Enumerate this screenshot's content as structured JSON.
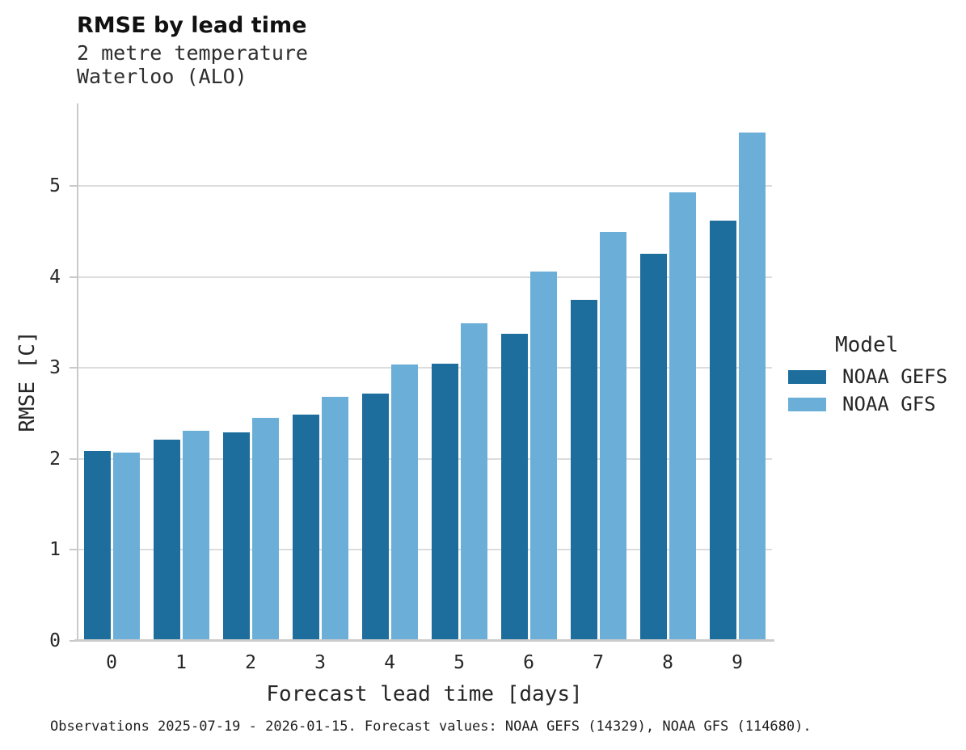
{
  "header": {
    "title": "RMSE by lead time",
    "subtitle_line1": "2 metre temperature",
    "subtitle_line2": "Waterloo (ALO)"
  },
  "chart_data": {
    "type": "bar",
    "title": "RMSE by lead time",
    "subtitle": [
      "2 metre temperature",
      "Waterloo (ALO)"
    ],
    "categories": [
      "0",
      "1",
      "2",
      "3",
      "4",
      "5",
      "6",
      "7",
      "8",
      "9"
    ],
    "series": [
      {
        "name": "NOAA GEFS",
        "color": "#1d6e9d",
        "values": [
          2.09,
          2.21,
          2.29,
          2.49,
          2.72,
          3.05,
          3.38,
          3.75,
          4.26,
          4.62
        ]
      },
      {
        "name": "NOAA GFS",
        "color": "#6bafd8",
        "values": [
          2.07,
          2.31,
          2.45,
          2.68,
          3.04,
          3.49,
          4.06,
          4.5,
          4.93,
          5.59
        ]
      }
    ],
    "xlabel": "Forecast lead time [days]",
    "ylabel": "RMSE [C]",
    "yticks": [
      0,
      1,
      2,
      3,
      4,
      5
    ],
    "ylim": [
      0,
      5.91
    ],
    "grid": "horizontal",
    "legend_title": "Model",
    "legend_position": "right"
  },
  "colors": {
    "gridline": "#dcdcdc",
    "spine": "#c9c9c9",
    "text": "#262626"
  },
  "footer": {
    "note": "Observations 2025-07-19 - 2026-01-15. Forecast values: NOAA GEFS (14329), NOAA GFS (114680)."
  }
}
